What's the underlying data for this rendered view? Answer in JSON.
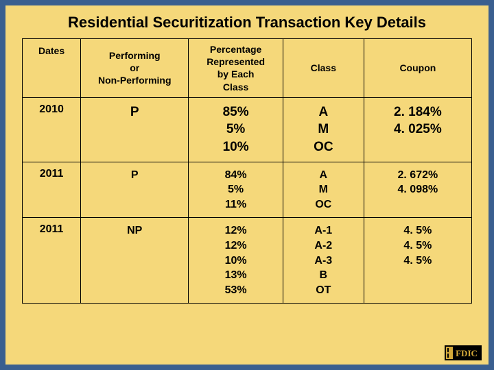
{
  "title": "Residential Securitization Transaction Key Details",
  "columns": [
    "Dates",
    "Performing\nor\nNon-Performing",
    "Percentage\nRepresented\nby Each\nClass",
    "Class",
    "Coupon"
  ],
  "rows": [
    {
      "date": "2010",
      "perf": "P",
      "pct": [
        "85%",
        "5%",
        "10%"
      ],
      "class": [
        "A",
        "M",
        "OC"
      ],
      "coupon": [
        "2. 184%",
        "4. 025%"
      ]
    },
    {
      "date": "2011",
      "perf": "P",
      "pct": [
        "84%",
        "5%",
        "11%"
      ],
      "class": [
        "A",
        "M",
        "OC"
      ],
      "coupon": [
        "2. 672%",
        "4. 098%"
      ]
    },
    {
      "date": "2011",
      "perf": "NP",
      "pct": [
        "12%",
        "12%",
        "10%",
        "13%",
        "53%"
      ],
      "class": [
        "A-1",
        "A-2",
        "A-3",
        "B",
        "OT"
      ],
      "coupon": [
        "4. 5%",
        "4. 5%",
        "4. 5%"
      ]
    }
  ],
  "column_widths": [
    "13%",
    "24%",
    "21%",
    "18%",
    "24%"
  ],
  "header_fontsize": 14,
  "body_fontsize": 16,
  "row0_fontsize": 19,
  "title_fontsize": 22,
  "background_color": "#f5d87a",
  "border_color": "#3a5f8f",
  "cell_border_color": "#000000",
  "text_color": "#000000",
  "logo_text": "FDIC",
  "logo_bg": "#000000",
  "logo_fg": "#d4a93a"
}
